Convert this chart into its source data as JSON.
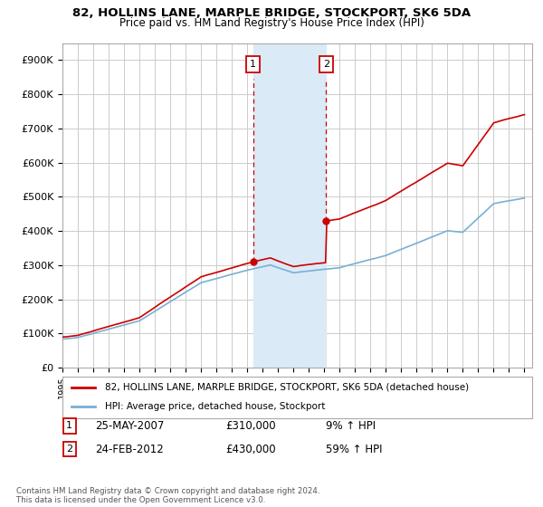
{
  "title": "82, HOLLINS LANE, MARPLE BRIDGE, STOCKPORT, SK6 5DA",
  "subtitle": "Price paid vs. HM Land Registry's House Price Index (HPI)",
  "legend_line1": "82, HOLLINS LANE, MARPLE BRIDGE, STOCKPORT, SK6 5DA (detached house)",
  "legend_line2": "HPI: Average price, detached house, Stockport",
  "sale1_label": "1",
  "sale1_date": "25-MAY-2007",
  "sale1_price": "£310,000",
  "sale1_hpi": "9% ↑ HPI",
  "sale1_year": 2007.38,
  "sale1_price_val": 310000,
  "sale2_label": "2",
  "sale2_date": "24-FEB-2012",
  "sale2_price": "£430,000",
  "sale2_hpi": "59% ↑ HPI",
  "sale2_year": 2012.12,
  "sale2_price_val": 430000,
  "footer": "Contains HM Land Registry data © Crown copyright and database right 2024.\nThis data is licensed under the Open Government Licence v3.0.",
  "red_color": "#cc0000",
  "blue_color": "#7aafd4",
  "shade_color": "#daeaf7",
  "grid_color": "#cccccc",
  "background_color": "#ffffff",
  "ylim_min": 0,
  "ylim_max": 950000,
  "yticks": [
    0,
    100000,
    200000,
    300000,
    400000,
    500000,
    600000,
    700000,
    800000,
    900000
  ],
  "ytick_labels": [
    "£0",
    "£100K",
    "£200K",
    "£300K",
    "£400K",
    "£500K",
    "£600K",
    "£700K",
    "£800K",
    "£900K"
  ],
  "xmin": 1995,
  "xmax": 2025.5
}
